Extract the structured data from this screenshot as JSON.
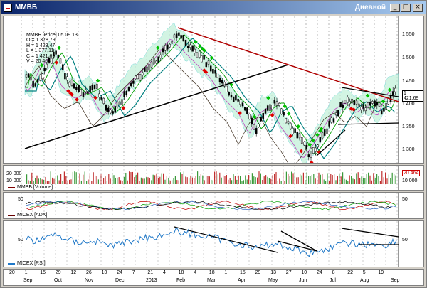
{
  "window": {
    "title": "MMBБ",
    "period": "Дневной"
  },
  "controls": {
    "minimize": "_",
    "maximize": "□",
    "close": "×"
  },
  "info": {
    "header": "MMBБ [Price] 05.09.13",
    "open": "O = 1 378,79",
    "high": "H = 1 423,47",
    "low": "L = 1 377,11",
    "close": "C = 1 421,69",
    "volume": "V = 20 464"
  },
  "price_axis": [
    "1 550",
    "1 500",
    "1 450",
    "1 400",
    "1 350",
    "1 300"
  ],
  "last_price": "1 421,69",
  "volume_axis": [
    "20 000",
    "10 000"
  ],
  "volume_tag": "20 464",
  "volume_legend": "MMBБ [Volume]",
  "adx_axis": "50",
  "adx_legend": "MICEX [ADX]",
  "rsi_axis": "50",
  "rsi_legend": "MICEX [RSI]",
  "x_days": [
    "20",
    "8",
    "22",
    "5",
    "19",
    "3",
    "17",
    "3",
    "21",
    "4",
    "18",
    "4",
    "15",
    "1",
    "15",
    "29",
    "12",
    "26",
    "10",
    "24",
    "7",
    "21",
    "4",
    "17",
    "1",
    "15",
    "29",
    "12",
    "26",
    "9",
    "23",
    "6",
    "20",
    "3",
    "17",
    "2",
    "16",
    "30",
    "14",
    "29",
    "12",
    "26",
    "9",
    "23",
    "6",
    "20",
    "3",
    "17"
  ],
  "x_days_row": [
    "20",
    "1",
    "15",
    "29",
    "12",
    "26",
    "10",
    "24",
    "7",
    "21",
    "4",
    "18",
    "4",
    "18",
    "1",
    "15",
    "29",
    "13",
    "27",
    "10",
    "24",
    "8",
    "22",
    "5",
    "19"
  ],
  "x_months": [
    "Sep",
    "Oct",
    "Nov",
    "Dec",
    "2013",
    "Feb",
    "Mar",
    "Apr",
    "May",
    "Jun",
    "Jul",
    "Aug",
    "Sep"
  ],
  "colors": {
    "accent": "#0a246a",
    "up": "#00a000",
    "down": "#cc0000",
    "trend_red": "#b00000",
    "rsi": "#1f78c8",
    "cloud": "#40c8c8"
  }
}
